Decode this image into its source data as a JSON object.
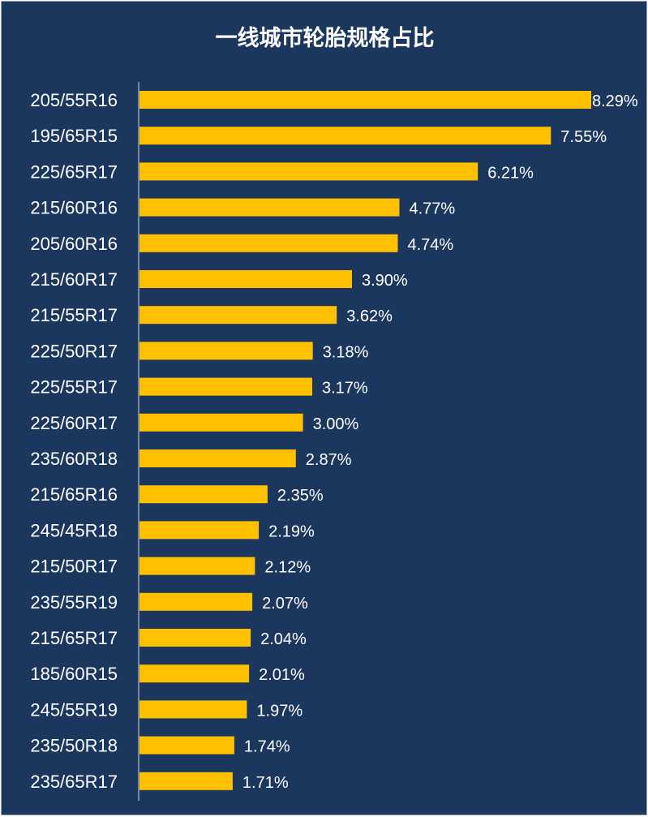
{
  "chart_data": {
    "type": "bar",
    "orientation": "horizontal",
    "title": "一线城市轮胎规格占比",
    "categories": [
      "205/55R16",
      "195/65R15",
      "225/65R17",
      "215/60R16",
      "205/60R16",
      "215/60R17",
      "215/55R17",
      "225/50R17",
      "225/55R17",
      "225/60R17",
      "235/60R18",
      "215/65R16",
      "245/45R18",
      "215/50R17",
      "235/55R19",
      "215/65R17",
      "185/60R15",
      "245/55R19",
      "235/50R18",
      "235/65R17"
    ],
    "values": [
      8.29,
      7.55,
      6.21,
      4.77,
      4.74,
      3.9,
      3.62,
      3.18,
      3.17,
      3.0,
      2.87,
      2.35,
      2.19,
      2.12,
      2.07,
      2.04,
      2.01,
      1.97,
      1.74,
      1.71
    ],
    "value_labels": [
      "8.29%",
      "7.55%",
      "6.21%",
      "4.77%",
      "4.74%",
      "3.90%",
      "3.62%",
      "3.18%",
      "3.17%",
      "3.00%",
      "2.87%",
      "2.35%",
      "2.19%",
      "2.12%",
      "2.07%",
      "2.04%",
      "2.01%",
      "1.97%",
      "1.74%",
      "1.71%"
    ],
    "xlim": [
      0,
      8.29
    ],
    "grid": false,
    "legend": "none",
    "colors": {
      "background": "#1b375e",
      "bar": "#ffc000",
      "text": "#ffffff",
      "axis": "#d9d9d9"
    }
  }
}
